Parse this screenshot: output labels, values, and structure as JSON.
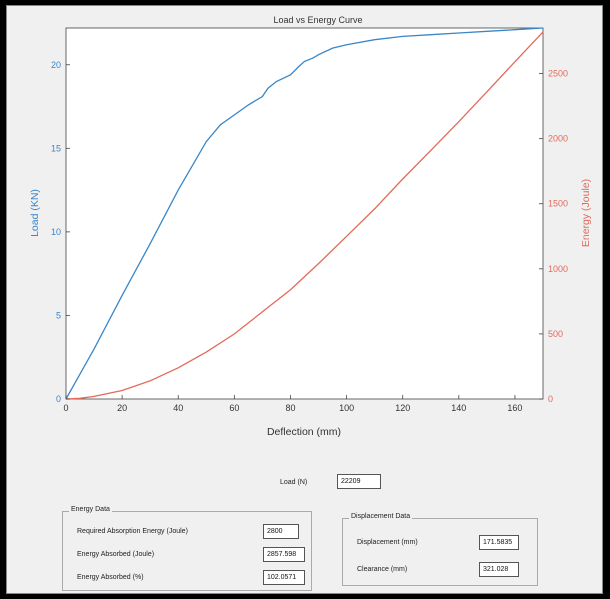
{
  "chart_data": {
    "type": "line",
    "title": "Load vs Energy Curve",
    "xlabel": "Deflection (mm)",
    "ylabel_left": "Load (KN)",
    "ylabel_right": "Energy (Joule)",
    "xlim": [
      0,
      170
    ],
    "ylim_left": [
      0,
      22.2
    ],
    "ylim_right": [
      0,
      2850
    ],
    "x_ticks": [
      0,
      20,
      40,
      60,
      80,
      100,
      120,
      140,
      160
    ],
    "y_ticks_left": [
      0,
      5,
      10,
      15,
      20
    ],
    "y_ticks_right": [
      0,
      500,
      1000,
      1500,
      2000,
      2500
    ],
    "grid": false,
    "series": [
      {
        "name": "Load (KN)",
        "axis": "left",
        "color": "#3a86c8",
        "x": [
          0,
          10,
          20,
          30,
          40,
          50,
          55,
          60,
          65,
          70,
          72,
          75,
          80,
          83,
          85,
          88,
          90,
          95,
          100,
          110,
          120,
          130,
          140,
          150,
          160,
          165,
          170
        ],
        "y": [
          0,
          3,
          6.2,
          9.3,
          12.5,
          15.4,
          16.4,
          17,
          17.6,
          18.1,
          18.6,
          19,
          19.4,
          19.9,
          20.2,
          20.4,
          20.6,
          21,
          21.2,
          21.5,
          21.7,
          21.8,
          21.9,
          22,
          22.1,
          22.15,
          22.2
        ]
      },
      {
        "name": "Energy (Joule)",
        "axis": "right",
        "color": "#e26a5a",
        "x": [
          0,
          5,
          10,
          20,
          30,
          40,
          50,
          60,
          70,
          80,
          90,
          100,
          110,
          120,
          130,
          140,
          150,
          160,
          170
        ],
        "y": [
          0,
          5,
          20,
          65,
          140,
          240,
          360,
          500,
          670,
          840,
          1040,
          1250,
          1460,
          1690,
          1910,
          2130,
          2360,
          2590,
          2820
        ]
      }
    ]
  },
  "load": {
    "label": "Load (N)",
    "value": "22209"
  },
  "energy_panel": {
    "title": "Energy Data",
    "rows": [
      {
        "label": "Required Absorption Energy (Joule)",
        "value": "2800"
      },
      {
        "label": "Energy Absorbed (Joule)",
        "value": "2857.598"
      },
      {
        "label": "Energy Absorbed (%)",
        "value": "102.0571"
      }
    ]
  },
  "displacement_panel": {
    "title": "Displacement Data",
    "rows": [
      {
        "label": "Displacement (mm)",
        "value": "171.5835"
      },
      {
        "label": "Clearance (mm)",
        "value": "321.028"
      }
    ]
  },
  "colors": {
    "load_axis": "#3a86c8",
    "energy_axis": "#e26a5a"
  }
}
